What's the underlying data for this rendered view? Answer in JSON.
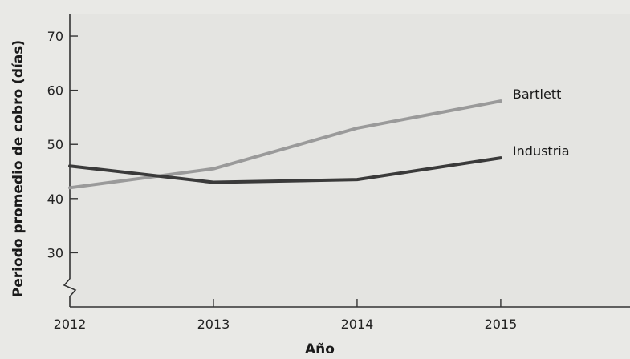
{
  "chart_data": {
    "type": "line",
    "title": "",
    "xlabel": "Año",
    "ylabel": "Periodo promedio de cobro (días)",
    "x": [
      2012,
      2013,
      2014,
      2015
    ],
    "x_tick_labels": [
      "2012",
      "2013",
      "2014",
      "2015"
    ],
    "y_tick_labels": [
      "30",
      "40",
      "50",
      "60",
      "70"
    ],
    "y_ticks": [
      30,
      40,
      50,
      60,
      70
    ],
    "xlim": [
      2012,
      2015.9
    ],
    "ylim": [
      20,
      74
    ],
    "y_axis_break": true,
    "grid": false,
    "series": [
      {
        "name": "Bartlett",
        "color": "#9a9a9a",
        "values": [
          42.0,
          45.5,
          53.0,
          58.0
        ]
      },
      {
        "name": "Industria",
        "color": "#3a3a3a",
        "values": [
          46.0,
          43.0,
          43.5,
          47.5
        ]
      }
    ]
  }
}
